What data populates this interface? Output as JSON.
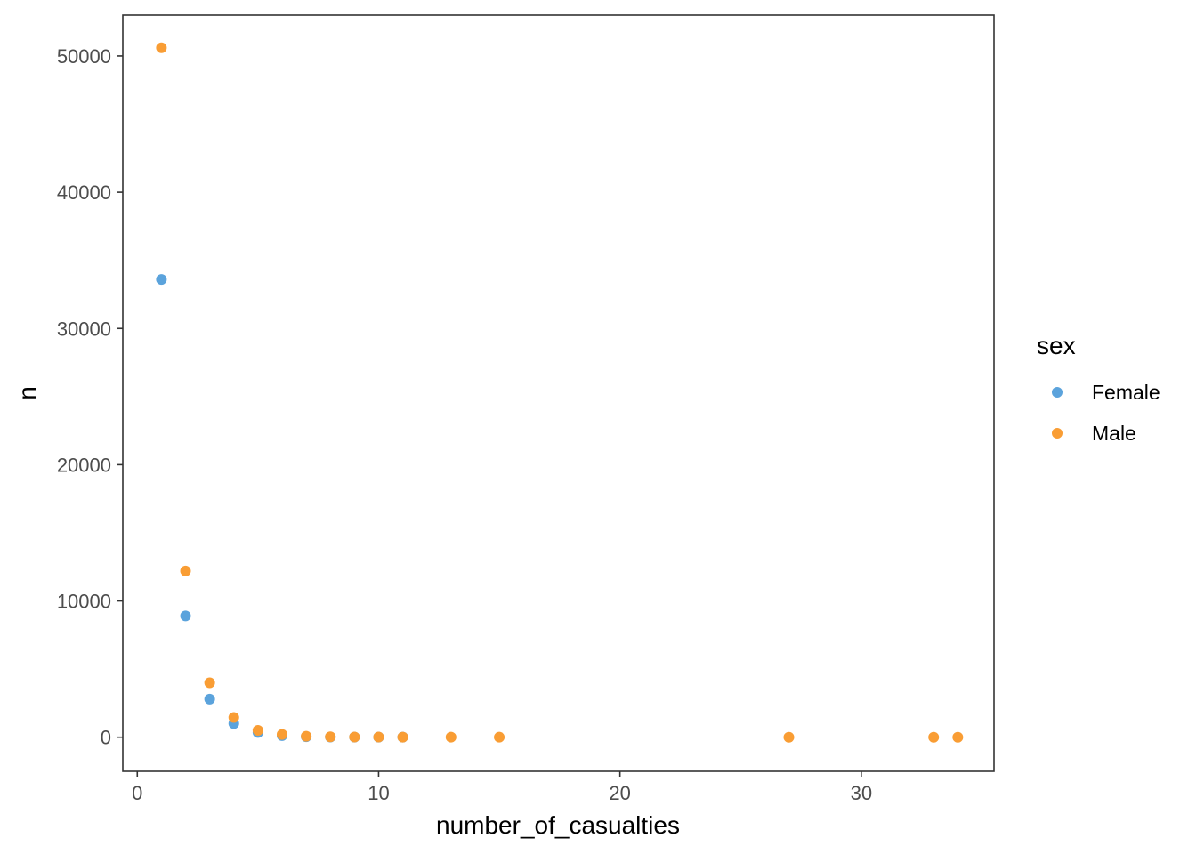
{
  "chart_data": {
    "type": "scatter",
    "xlabel": "number_of_casualties",
    "ylabel": "n",
    "xlim": [
      -0.6,
      35.5
    ],
    "ylim": [
      -2500,
      53000
    ],
    "x_ticks": [
      0,
      10,
      20,
      30
    ],
    "y_ticks": [
      0,
      10000,
      20000,
      30000,
      40000,
      50000
    ],
    "grid": false,
    "legend": {
      "title": "sex",
      "position": "right",
      "entries": [
        "Female",
        "Male"
      ]
    },
    "series": [
      {
        "name": "Female",
        "color": "#5ba3dc",
        "points": [
          {
            "x": 1,
            "y": 33600
          },
          {
            "x": 2,
            "y": 8900
          },
          {
            "x": 3,
            "y": 2800
          },
          {
            "x": 4,
            "y": 1000
          },
          {
            "x": 5,
            "y": 350
          },
          {
            "x": 6,
            "y": 120
          },
          {
            "x": 7,
            "y": 40
          },
          {
            "x": 8,
            "y": 15
          },
          {
            "x": 9,
            "y": 8
          },
          {
            "x": 10,
            "y": 5
          },
          {
            "x": 11,
            "y": 3
          }
        ]
      },
      {
        "name": "Male",
        "color": "#f99d34",
        "points": [
          {
            "x": 1,
            "y": 50600
          },
          {
            "x": 2,
            "y": 12200
          },
          {
            "x": 3,
            "y": 4000
          },
          {
            "x": 4,
            "y": 1450
          },
          {
            "x": 5,
            "y": 500
          },
          {
            "x": 6,
            "y": 200
          },
          {
            "x": 7,
            "y": 70
          },
          {
            "x": 8,
            "y": 30
          },
          {
            "x": 9,
            "y": 15
          },
          {
            "x": 10,
            "y": 10
          },
          {
            "x": 11,
            "y": 5
          },
          {
            "x": 13,
            "y": 3
          },
          {
            "x": 15,
            "y": 2
          },
          {
            "x": 27,
            "y": 1
          },
          {
            "x": 33,
            "y": 1
          },
          {
            "x": 34,
            "y": 1
          }
        ]
      }
    ]
  }
}
